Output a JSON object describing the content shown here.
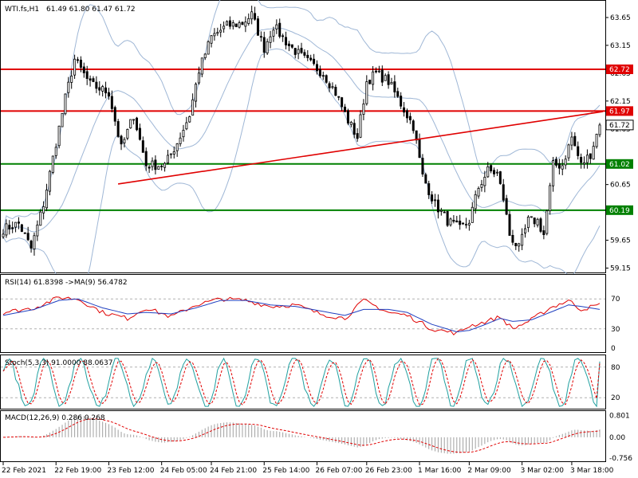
{
  "header": {
    "symbol_label": "WTI.fs,H1",
    "ohlc_text": "61.49 61.80 61.47 61.72"
  },
  "colors": {
    "bull_candle": "#000000",
    "bear_candle": "#000000",
    "bollinger": "#9fb7d6",
    "resistance": "#e00000",
    "support": "#008000",
    "rsi": "#e00000",
    "rsi_ma": "#2040c0",
    "stoch_main": "#20a0a0",
    "stoch_signal": "#e00000",
    "macd_hist": "#a0a0a0",
    "macd_signal": "#e00000"
  },
  "chart_data": [
    {
      "type": "candlestick",
      "id": "price",
      "title": "",
      "ylim": [
        59.1,
        63.85
      ],
      "yticks": [
        "63.65",
        "63.15",
        "62.65",
        "62.15",
        "61.65",
        "60.65",
        "60.15",
        "59.65",
        "59.15"
      ],
      "ytick_values": [
        63.65,
        63.15,
        62.65,
        62.15,
        61.65,
        60.65,
        60.15,
        59.65,
        59.15
      ],
      "current_price": 61.72,
      "current_price_label": "61.72",
      "xticks": [
        "22 Feb 2021",
        "22 Feb 19:00",
        "23 Feb 12:00",
        "24 Feb 05:00",
        "24 Feb 21:00",
        "25 Feb 14:00",
        "26 Feb 07:00",
        "26 Feb 23:00",
        "1 Mar 16:00",
        "2 Mar 09:00",
        "3 Mar 02:00",
        "3 Mar 18:00"
      ],
      "xtick_index": [
        0,
        17,
        34,
        51,
        67,
        84,
        101,
        117,
        134,
        150,
        167,
        183
      ],
      "candle_count": 193,
      "horizontal_lines": [
        {
          "label": "62.72",
          "value": 62.72,
          "color": "resistance"
        },
        {
          "label": "61.97",
          "value": 61.97,
          "color": "resistance"
        },
        {
          "label": "61.02",
          "value": 61.02,
          "color": "support"
        },
        {
          "label": "60.19",
          "value": 60.19,
          "color": "support"
        }
      ],
      "trendline": {
        "start": {
          "index": 37,
          "value": 60.66
        },
        "end": {
          "index": 193,
          "value": 61.96
        }
      },
      "close_anchors": [
        [
          0,
          59.85
        ],
        [
          5,
          59.95
        ],
        [
          9,
          59.5
        ],
        [
          13,
          60.3
        ],
        [
          17,
          61.4
        ],
        [
          20,
          62.2
        ],
        [
          23,
          62.9
        ],
        [
          28,
          62.45
        ],
        [
          34,
          62.3
        ],
        [
          38,
          61.3
        ],
        [
          42,
          61.9
        ],
        [
          46,
          61.0
        ],
        [
          52,
          61.0
        ],
        [
          56,
          61.4
        ],
        [
          60,
          61.9
        ],
        [
          63,
          62.7
        ],
        [
          67,
          63.3
        ],
        [
          72,
          63.5
        ],
        [
          77,
          63.55
        ],
        [
          80,
          63.7
        ],
        [
          84,
          63.1
        ],
        [
          87,
          63.5
        ],
        [
          92,
          63.15
        ],
        [
          97,
          62.9
        ],
        [
          103,
          62.65
        ],
        [
          107,
          62.3
        ],
        [
          111,
          61.8
        ],
        [
          114,
          61.5
        ],
        [
          117,
          62.5
        ],
        [
          120,
          62.65
        ],
        [
          124,
          62.5
        ],
        [
          128,
          62.1
        ],
        [
          132,
          61.7
        ],
        [
          135,
          60.8
        ],
        [
          139,
          60.3
        ],
        [
          143,
          60.0
        ],
        [
          147,
          59.85
        ],
        [
          150,
          60.0
        ],
        [
          153,
          60.6
        ],
        [
          156,
          60.9
        ],
        [
          159,
          60.85
        ],
        [
          161,
          60.4
        ],
        [
          163,
          59.75
        ],
        [
          166,
          59.5
        ],
        [
          169,
          60.0
        ],
        [
          172,
          60.0
        ],
        [
          174,
          59.75
        ],
        [
          177,
          61.0
        ],
        [
          180,
          61.0
        ],
        [
          183,
          61.5
        ],
        [
          186,
          61.0
        ],
        [
          189,
          61.2
        ],
        [
          192,
          61.72
        ]
      ]
    },
    {
      "type": "line",
      "id": "rsi",
      "title": "RSI(14) 61.8398 ->MA(9) 56.4782",
      "ylim": [
        0,
        100
      ],
      "yticks": [
        "70",
        "30",
        "0"
      ],
      "ytick_values": [
        70,
        30,
        0
      ],
      "levels": [
        70,
        30
      ],
      "series": [
        {
          "name": "RSI(14)",
          "anchors": [
            [
              0,
              52
            ],
            [
              10,
              58
            ],
            [
              18,
              72
            ],
            [
              24,
              70
            ],
            [
              32,
              52
            ],
            [
              40,
              44
            ],
            [
              46,
              58
            ],
            [
              54,
              46
            ],
            [
              62,
              62
            ],
            [
              70,
              70
            ],
            [
              78,
              68
            ],
            [
              86,
              60
            ],
            [
              94,
              62
            ],
            [
              102,
              50
            ],
            [
              110,
              44
            ],
            [
              116,
              68
            ],
            [
              124,
              52
            ],
            [
              130,
              48
            ],
            [
              138,
              30
            ],
            [
              146,
              24
            ],
            [
              150,
              34
            ],
            [
              154,
              38
            ],
            [
              160,
              46
            ],
            [
              164,
              30
            ],
            [
              170,
              42
            ],
            [
              176,
              58
            ],
            [
              182,
              68
            ],
            [
              186,
              56
            ],
            [
              192,
              62
            ]
          ]
        },
        {
          "name": "MA(9)",
          "anchors": [
            [
              0,
              48
            ],
            [
              10,
              56
            ],
            [
              18,
              68
            ],
            [
              24,
              70
            ],
            [
              32,
              58
            ],
            [
              40,
              50
            ],
            [
              46,
              52
            ],
            [
              54,
              50
            ],
            [
              62,
              58
            ],
            [
              70,
              68
            ],
            [
              78,
              68
            ],
            [
              86,
              62
            ],
            [
              94,
              60
            ],
            [
              102,
              54
            ],
            [
              110,
              48
            ],
            [
              116,
              56
            ],
            [
              124,
              56
            ],
            [
              130,
              52
            ],
            [
              138,
              36
            ],
            [
              146,
              26
            ],
            [
              150,
              28
            ],
            [
              154,
              34
            ],
            [
              160,
              44
            ],
            [
              164,
              40
            ],
            [
              170,
              42
            ],
            [
              176,
              52
            ],
            [
              182,
              62
            ],
            [
              186,
              60
            ],
            [
              192,
              56
            ]
          ]
        }
      ]
    },
    {
      "type": "line",
      "id": "stoch",
      "title": "Stoch(5,3,3) 91.0000 88.0637",
      "ylim": [
        0,
        100
      ],
      "yticks": [
        "80",
        "20"
      ],
      "ytick_values": [
        80,
        20
      ],
      "levels": [
        80,
        20
      ],
      "main_value": 91.0,
      "signal_value": 88.06
    },
    {
      "type": "bar",
      "id": "macd",
      "title": "MACD(12,26,9) 0.286 0.268",
      "ylim": [
        -0.85,
        0.9
      ],
      "yticks": [
        "0.801",
        "0.00",
        "-0.756"
      ],
      "ytick_values": [
        0.801,
        0.0,
        -0.756
      ],
      "macd_value": 0.286,
      "signal_value": 0.268
    }
  ]
}
